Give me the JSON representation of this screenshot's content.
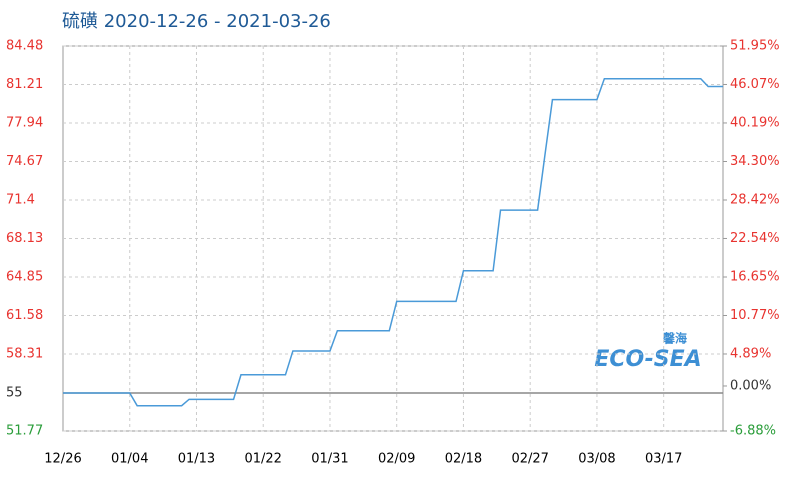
{
  "chart_data": {
    "type": "line",
    "title": "硫磺 2020-12-26 - 2021-03-26",
    "watermark": {
      "top": "馨海",
      "main": "ECO-SEA"
    },
    "categories": [
      "12/26",
      null,
      null,
      null,
      null,
      null,
      null,
      null,
      null,
      "01/04",
      null,
      null,
      null,
      null,
      null,
      null,
      null,
      null,
      "01/13",
      null,
      null,
      null,
      null,
      null,
      null,
      null,
      null,
      "01/22",
      null,
      null,
      null,
      null,
      null,
      null,
      null,
      null,
      "01/31",
      null,
      null,
      null,
      null,
      null,
      null,
      null,
      null,
      "02/09",
      null,
      null,
      null,
      null,
      null,
      null,
      null,
      null,
      "02/18",
      null,
      null,
      null,
      null,
      null,
      null,
      null,
      null,
      "02/27",
      null,
      null,
      null,
      null,
      null,
      null,
      null,
      null,
      "03/08",
      null,
      null,
      null,
      null,
      null,
      null,
      null,
      null,
      "03/17",
      null,
      null,
      null,
      null,
      null,
      null,
      null,
      null
    ],
    "series": [
      {
        "color": "#4a9ad8",
        "values": [
          55,
          55,
          55,
          55,
          55,
          55,
          55,
          55,
          55,
          55,
          53.92,
          53.92,
          53.92,
          53.92,
          53.92,
          53.92,
          53.92,
          54.46,
          54.46,
          54.46,
          54.46,
          54.46,
          54.46,
          54.46,
          56.55,
          56.55,
          56.55,
          56.55,
          56.55,
          56.55,
          56.55,
          58.57,
          58.57,
          58.57,
          58.57,
          58.57,
          58.57,
          60.29,
          60.29,
          60.29,
          60.29,
          60.29,
          60.29,
          60.29,
          60.29,
          62.78,
          62.78,
          62.78,
          62.78,
          62.78,
          62.78,
          62.78,
          62.78,
          62.78,
          65.38,
          65.38,
          65.38,
          65.38,
          65.38,
          70.54,
          70.54,
          70.54,
          70.54,
          70.54,
          70.54,
          75.27,
          79.92,
          79.92,
          79.92,
          79.92,
          79.92,
          79.92,
          79.92,
          81.7,
          81.7,
          81.7,
          81.7,
          81.7,
          81.7,
          81.7,
          81.7,
          81.7,
          81.7,
          81.7,
          81.7,
          81.7,
          81.7,
          81.04,
          81.04,
          81.04
        ]
      }
    ],
    "ylim": [
      51.77,
      84.48
    ],
    "yticks": [
      84.48,
      81.21,
      77.94,
      74.67,
      71.4,
      68.13,
      64.85,
      61.58,
      58.31,
      55,
      51.77
    ],
    "y2lim": [
      -6.88,
      51.95
    ],
    "y2ticks": [
      {
        "value": 51.95,
        "label": "51.95%"
      },
      {
        "value": 46.07,
        "label": "46.07%"
      },
      {
        "value": 40.19,
        "label": "40.19%"
      },
      {
        "value": 34.3,
        "label": "34.30%"
      },
      {
        "value": 28.42,
        "label": "28.42%"
      },
      {
        "value": 22.54,
        "label": "22.54%"
      },
      {
        "value": 16.65,
        "label": "16.65%"
      },
      {
        "value": 10.77,
        "label": "10.77%"
      },
      {
        "value": 4.89,
        "label": "4.89%"
      },
      {
        "value": 0,
        "label": "0.00%"
      },
      {
        "value": -6.88,
        "label": "-6.88%"
      }
    ],
    "baseline": 55,
    "y2_baseline": 0,
    "tick_colors": {
      "above": "#e8332f",
      "at": "#333333",
      "below": "#2a9d3a"
    },
    "grid": true
  }
}
